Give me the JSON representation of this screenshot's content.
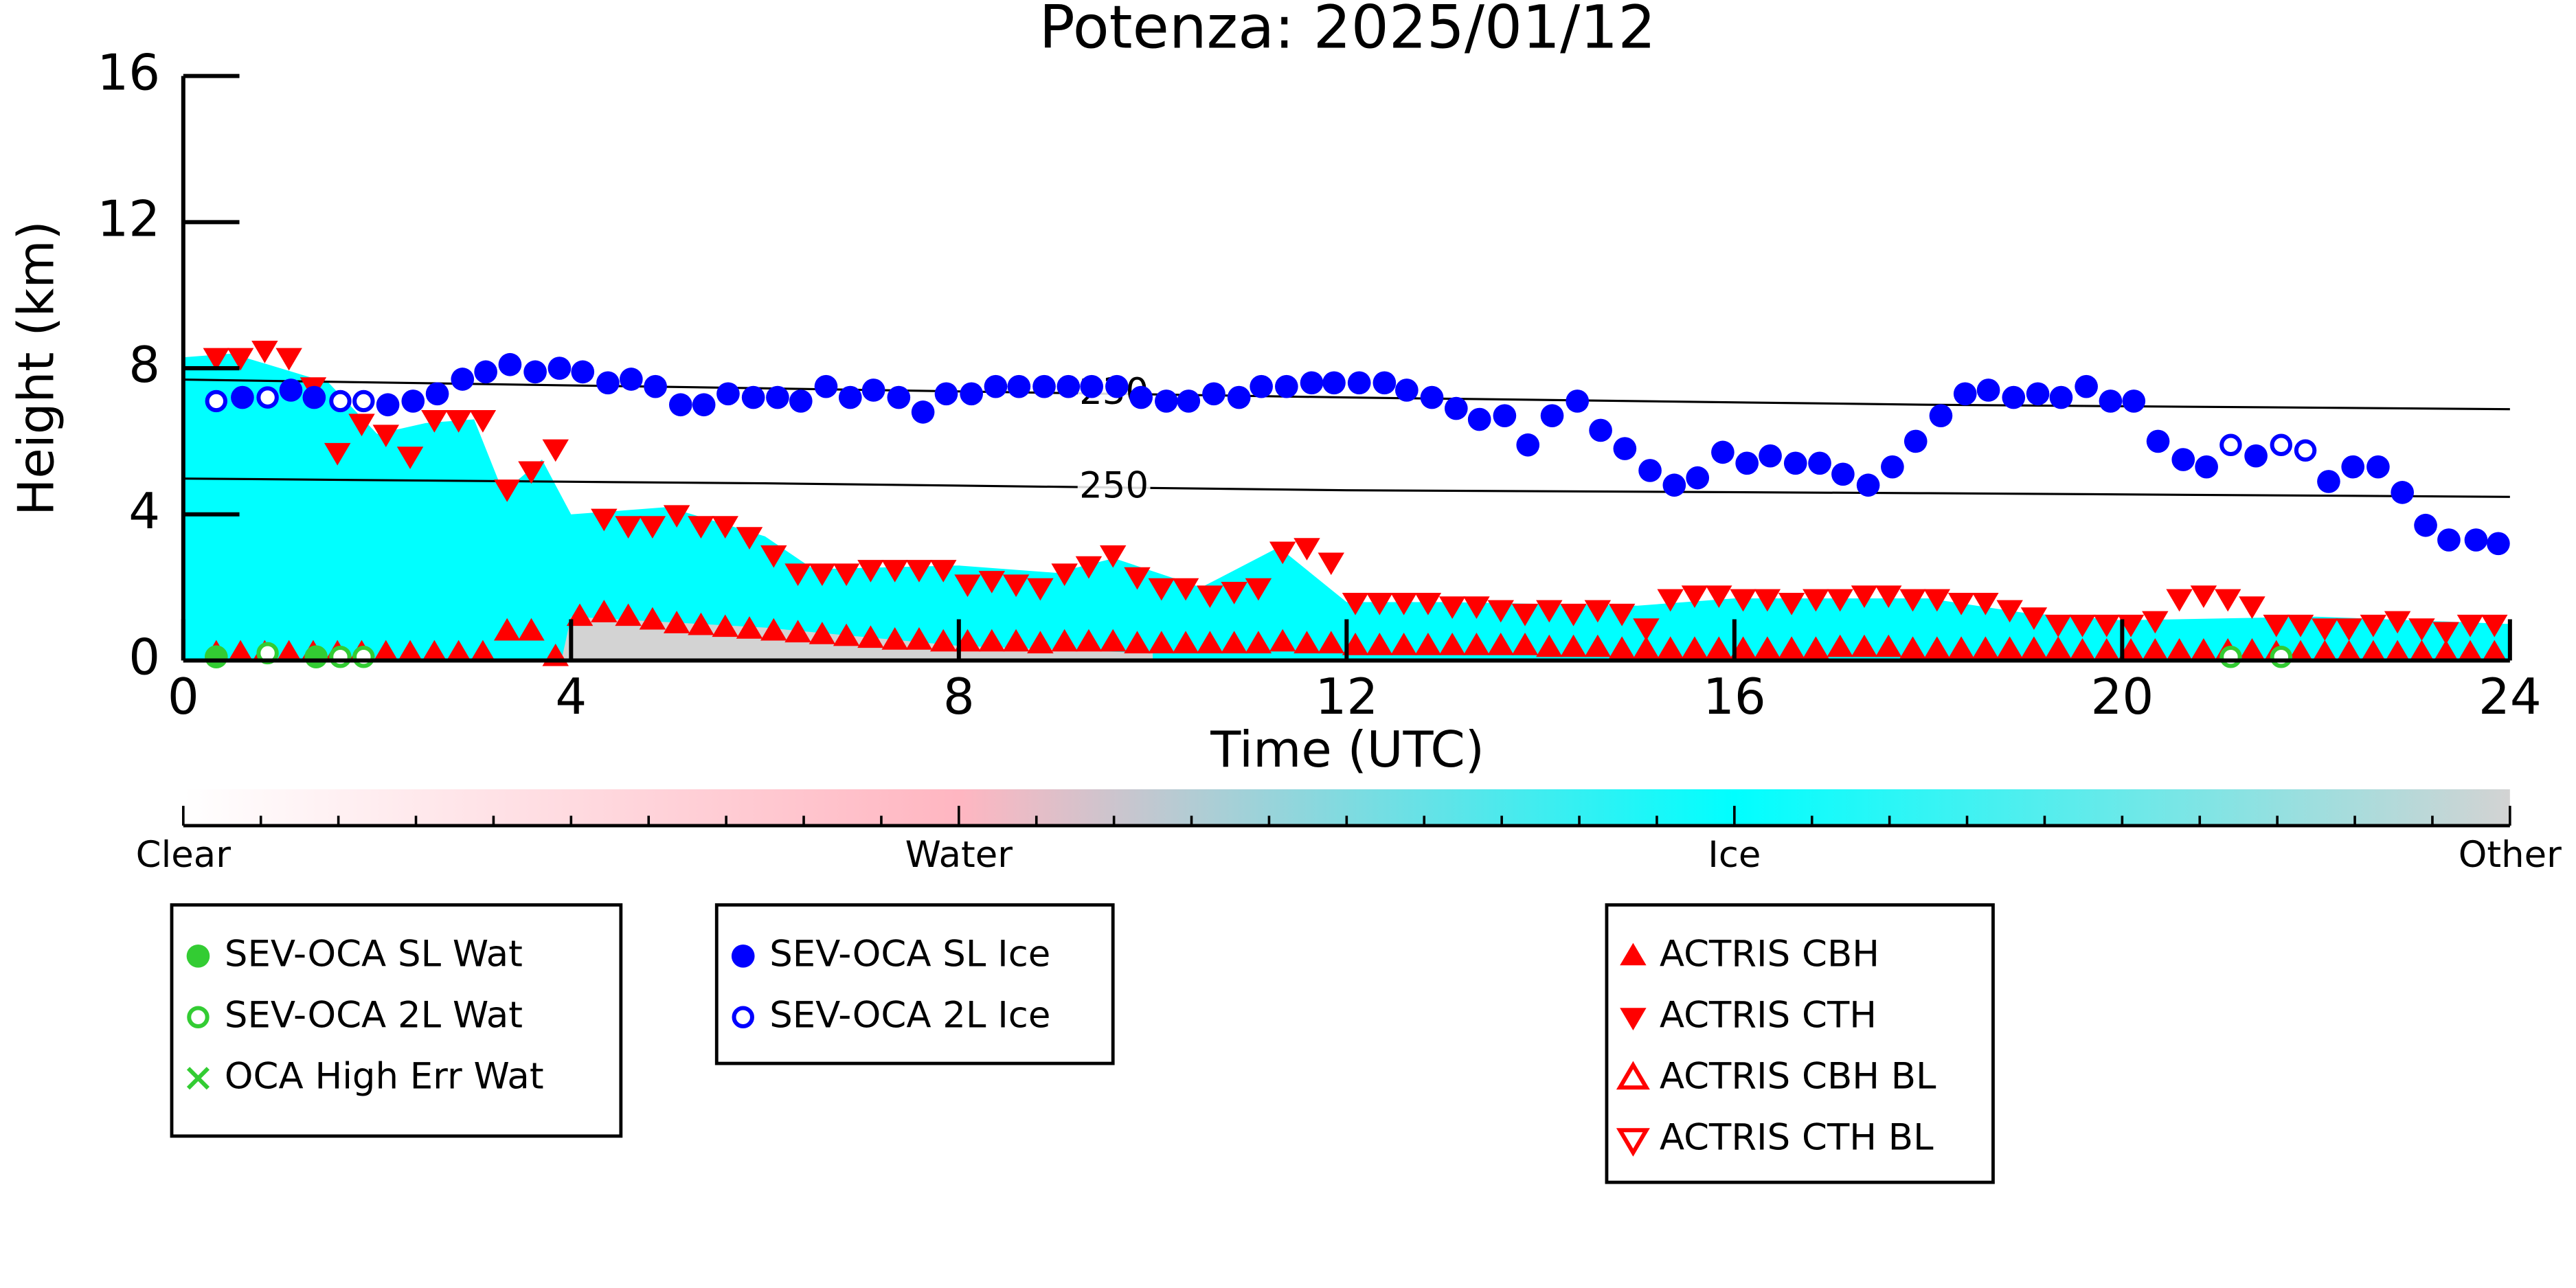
{
  "chart_data": {
    "type": "scatter",
    "title": "Potenza: 2025/01/12",
    "x_label": "Time (UTC)",
    "y_label": "Height (km)",
    "xlim": [
      0,
      24
    ],
    "xticks": [
      0,
      4,
      8,
      12,
      16,
      20,
      24
    ],
    "ylim": [
      0,
      16
    ],
    "yticks": [
      0,
      4,
      8,
      12,
      16
    ],
    "areas": [
      {
        "color": "#00ffff",
        "x": [
          0,
          0.5,
          1,
          1.5,
          2,
          2.5,
          3,
          3.3,
          3.7,
          4,
          5,
          6,
          6.5,
          8,
          9,
          9.6,
          10.5,
          11.3,
          12,
          13,
          15,
          16,
          18,
          19,
          20,
          22,
          24
        ],
        "values": [
          8.3,
          8.4,
          8.0,
          7.6,
          6.2,
          6.5,
          6.6,
          4.6,
          5.5,
          4.0,
          4.2,
          3.4,
          2.5,
          2.6,
          2.4,
          2.8,
          2.0,
          3.1,
          1.6,
          1.6,
          1.5,
          1.7,
          1.7,
          1.3,
          1.1,
          1.2,
          1.0
        ]
      },
      {
        "color": "#d3d3d3",
        "x": [
          3.9,
          4,
          6,
          8,
          10
        ],
        "values": [
          0,
          1.2,
          0.9,
          0.4,
          0.2
        ]
      }
    ],
    "contours": [
      {
        "label": "230",
        "x": [
          0,
          6,
          12,
          18,
          24
        ],
        "values": [
          7.69,
          7.45,
          7.2,
          7.0,
          6.88
        ]
      },
      {
        "label": "250",
        "x": [
          0,
          6,
          12,
          18,
          24
        ],
        "values": [
          4.98,
          4.85,
          4.66,
          4.58,
          4.48
        ]
      }
    ],
    "colorbar": {
      "labels": [
        "Clear",
        "Water",
        "Ice",
        "Other"
      ],
      "colors": [
        "#ffffff",
        "#ffb6c1",
        "#00ffff",
        "#d3d3d3"
      ]
    },
    "series": [
      {
        "name": "SEV-OCA SL Wat",
        "color": "#33cc33",
        "marker": "circle",
        "x": [
          0.34,
          1.37
        ],
        "values": [
          0.1,
          0.1
        ]
      },
      {
        "name": "SEV-OCA 2L Wat",
        "color": "#33cc33",
        "marker": "circle-open",
        "x": [
          0.87,
          1.62,
          1.86,
          21.12,
          21.64
        ],
        "values": [
          0.2,
          0.1,
          0.1,
          0.1,
          0.1
        ]
      },
      {
        "name": "OCA High Err Wat",
        "color": "#33cc33",
        "marker": "x",
        "x": [],
        "values": []
      },
      {
        "name": "SEV-OCA SL Ice",
        "color": "#0000ff",
        "marker": "circle",
        "x": [
          0.61,
          1.11,
          1.35,
          2.11,
          2.37,
          2.62,
          2.88,
          3.12,
          3.37,
          3.63,
          3.88,
          4.12,
          4.38,
          4.62,
          4.87,
          5.13,
          5.37,
          5.62,
          5.88,
          6.13,
          6.37,
          6.63,
          6.88,
          7.12,
          7.38,
          7.63,
          7.87,
          8.13,
          8.38,
          8.62,
          8.88,
          9.13,
          9.37,
          9.63,
          9.88,
          10.14,
          10.37,
          10.63,
          10.89,
          11.12,
          11.38,
          11.64,
          11.87,
          12.13,
          12.39,
          12.62,
          12.88,
          13.13,
          13.37,
          13.63,
          13.87,
          14.12,
          14.38,
          14.62,
          14.87,
          15.13,
          15.38,
          15.62,
          15.88,
          16.13,
          16.37,
          16.63,
          16.88,
          17.12,
          17.38,
          17.63,
          17.87,
          18.13,
          18.38,
          18.62,
          18.88,
          19.13,
          19.37,
          19.63,
          19.88,
          20.12,
          20.37,
          20.63,
          20.87,
          21.38,
          22.13,
          22.38,
          22.64,
          22.89,
          23.13,
          23.37,
          23.65,
          23.88
        ],
        "values": [
          7.2,
          7.4,
          7.2,
          7.0,
          7.1,
          7.3,
          7.7,
          7.9,
          8.1,
          7.9,
          8.0,
          7.9,
          7.6,
          7.7,
          7.5,
          7.0,
          7.0,
          7.3,
          7.2,
          7.2,
          7.1,
          7.5,
          7.2,
          7.4,
          7.2,
          6.8,
          7.3,
          7.3,
          7.5,
          7.5,
          7.5,
          7.5,
          7.5,
          7.5,
          7.2,
          7.1,
          7.1,
          7.3,
          7.2,
          7.5,
          7.5,
          7.6,
          7.6,
          7.6,
          7.6,
          7.4,
          7.2,
          6.9,
          6.6,
          6.7,
          5.9,
          6.7,
          7.1,
          6.3,
          5.8,
          5.2,
          4.8,
          5.0,
          5.7,
          5.4,
          5.6,
          5.4,
          5.4,
          5.1,
          4.8,
          5.3,
          6.0,
          6.7,
          7.3,
          7.4,
          7.2,
          7.3,
          7.2,
          7.5,
          7.1,
          7.1,
          6.0,
          5.5,
          5.3,
          5.6,
          4.9,
          5.3,
          5.3,
          4.6,
          3.7,
          3.3,
          3.3,
          3.2
        ]
      },
      {
        "name": "SEV-OCA 2L Ice",
        "color": "#0000ff",
        "marker": "circle-open",
        "x": [
          0.34,
          0.87,
          1.62,
          1.86,
          21.12,
          21.64,
          21.89
        ],
        "values": [
          7.1,
          7.2,
          7.1,
          7.1,
          5.9,
          5.9,
          5.75
        ]
      },
      {
        "name": "ACTRIS CBH",
        "color": "#ff0000",
        "marker": "triangle-up",
        "x": [
          0.34,
          0.59,
          0.84,
          1.09,
          1.34,
          1.59,
          1.84,
          2.09,
          2.34,
          2.59,
          2.84,
          3.09,
          3.34,
          3.59,
          3.84,
          4.09,
          4.34,
          4.59,
          4.84,
          5.09,
          5.34,
          5.59,
          5.84,
          6.09,
          6.34,
          6.59,
          6.84,
          7.09,
          7.34,
          7.59,
          7.84,
          8.09,
          8.34,
          8.59,
          8.84,
          9.09,
          9.34,
          9.59,
          9.84,
          10.09,
          10.34,
          10.59,
          10.84,
          11.09,
          11.34,
          11.59,
          11.84,
          12.09,
          12.34,
          12.59,
          12.84,
          13.09,
          13.34,
          13.59,
          13.84,
          14.09,
          14.34,
          14.59,
          14.84,
          15.09,
          15.34,
          15.59,
          15.84,
          16.09,
          16.34,
          16.59,
          16.84,
          17.09,
          17.34,
          17.59,
          17.84,
          18.09,
          18.34,
          18.59,
          18.84,
          19.09,
          19.34,
          19.59,
          19.84,
          20.09,
          20.34,
          20.59,
          20.84,
          21.09,
          21.34,
          21.59,
          21.84,
          22.09,
          22.34,
          22.59,
          22.84,
          23.09,
          23.34,
          23.59,
          23.84
        ],
        "values": [
          0.2,
          0.2,
          0.2,
          0.2,
          0.2,
          0.2,
          0.2,
          0.2,
          0.2,
          0.2,
          0.2,
          0.2,
          0.8,
          0.8,
          0.1,
          1.2,
          1.3,
          1.2,
          1.1,
          1.0,
          0.95,
          0.9,
          0.85,
          0.8,
          0.75,
          0.7,
          0.65,
          0.6,
          0.55,
          0.55,
          0.5,
          0.5,
          0.5,
          0.5,
          0.45,
          0.5,
          0.5,
          0.5,
          0.45,
          0.45,
          0.45,
          0.45,
          0.45,
          0.45,
          0.5,
          0.45,
          0.45,
          0.4,
          0.4,
          0.4,
          0.4,
          0.4,
          0.4,
          0.4,
          0.4,
          0.35,
          0.35,
          0.35,
          0.3,
          0.3,
          0.3,
          0.3,
          0.3,
          0.3,
          0.3,
          0.3,
          0.3,
          0.35,
          0.35,
          0.35,
          0.3,
          0.3,
          0.3,
          0.3,
          0.3,
          0.3,
          0.3,
          0.25,
          0.25,
          0.25,
          0.25,
          0.25,
          0.25,
          0.25,
          0.25,
          0.2,
          0.2,
          0.2,
          0.2,
          0.2,
          0.2,
          0.2,
          0.2,
          0.2,
          0.2
        ]
      },
      {
        "name": "ACTRIS CTH",
        "color": "#ff0000",
        "marker": "triangle-down",
        "x": [
          0.34,
          0.59,
          0.84,
          1.09,
          1.34,
          1.59,
          1.84,
          2.09,
          2.34,
          2.59,
          2.84,
          3.09,
          3.34,
          3.59,
          3.84,
          4.09,
          4.34,
          4.59,
          4.84,
          5.09,
          5.34,
          5.59,
          5.84,
          6.09,
          6.34,
          6.59,
          6.84,
          7.09,
          7.34,
          7.59,
          7.84,
          8.09,
          8.34,
          8.59,
          8.84,
          9.09,
          9.34,
          9.59,
          9.84,
          10.09,
          10.34,
          10.59,
          10.84,
          11.09,
          11.34,
          11.59,
          11.84,
          12.09,
          12.34,
          12.59,
          12.84,
          13.09,
          13.34,
          13.59,
          13.84,
          14.09,
          14.34,
          14.59,
          14.84,
          15.09,
          15.34,
          15.59,
          15.84,
          16.09,
          16.34,
          16.59,
          16.84,
          17.09,
          17.34,
          17.59,
          17.84,
          18.09,
          18.34,
          18.59,
          18.84,
          19.09,
          19.34,
          19.59,
          19.84,
          20.09,
          20.34,
          20.59,
          20.84,
          21.09,
          21.34,
          21.59,
          21.84,
          22.09,
          22.34,
          22.59,
          22.84,
          23.09,
          23.34,
          23.59,
          23.84
        ],
        "values": [
          8.3,
          8.3,
          8.5,
          8.3,
          7.5,
          5.7,
          6.5,
          6.2,
          5.6,
          6.6,
          6.6,
          6.6,
          4.7,
          5.2,
          5.8,
          null,
          3.9,
          3.7,
          3.7,
          4.0,
          3.7,
          3.7,
          3.4,
          2.9,
          2.4,
          2.4,
          2.4,
          2.5,
          2.5,
          2.5,
          2.5,
          2.1,
          2.2,
          2.1,
          2.0,
          2.4,
          2.6,
          2.9,
          2.3,
          2.0,
          2.0,
          1.8,
          1.9,
          2.0,
          3.0,
          3.1,
          2.7,
          1.6,
          1.6,
          1.6,
          1.6,
          1.5,
          1.5,
          1.4,
          1.3,
          1.4,
          1.3,
          1.4,
          1.3,
          0.9,
          1.7,
          1.8,
          1.8,
          1.7,
          1.7,
          1.6,
          1.7,
          1.7,
          1.8,
          1.8,
          1.7,
          1.7,
          1.6,
          1.6,
          1.4,
          1.2,
          1.0,
          1.0,
          1.0,
          1.0,
          1.1,
          1.7,
          1.8,
          1.7,
          1.5,
          1.0,
          1.0,
          0.9,
          0.9,
          1.0,
          1.1,
          0.9,
          0.8,
          1.0,
          1.0
        ]
      },
      {
        "name": "ACTRIS CBH BL",
        "color": "#ff0000",
        "marker": "triangle-up-open",
        "x": [],
        "values": []
      },
      {
        "name": "ACTRIS CTH BL",
        "color": "#ff0000",
        "marker": "triangle-down-open",
        "x": [],
        "values": []
      }
    ]
  }
}
